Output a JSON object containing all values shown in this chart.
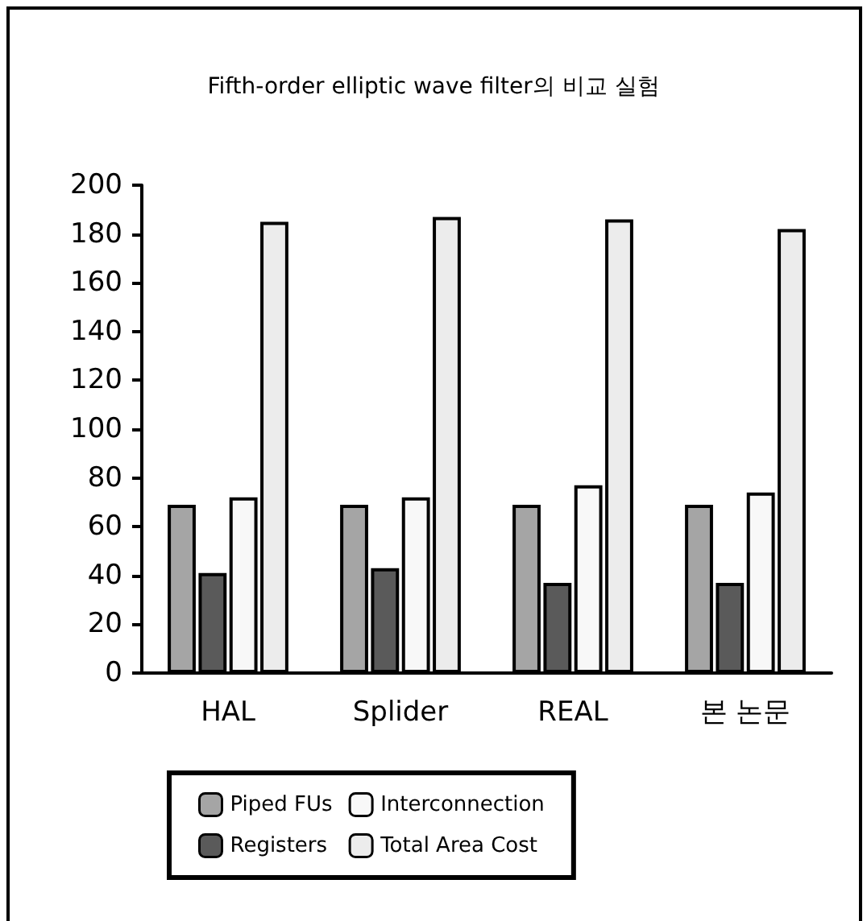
{
  "chart_data": {
    "type": "bar",
    "title": "Fifth-order elliptic wave filter의 비교 실험",
    "categories": [
      "HAL",
      "Splider",
      "REAL",
      "본 논문"
    ],
    "series": [
      {
        "name": "Piped FUs",
        "color": "#a5a5a5",
        "values": [
          69,
          69,
          69,
          69
        ]
      },
      {
        "name": "Registers",
        "color": "#5a5a5a",
        "values": [
          41,
          43,
          37,
          37
        ]
      },
      {
        "name": "Interconnection",
        "color": "#f8f8f8",
        "values": [
          72,
          72,
          77,
          74
        ]
      },
      {
        "name": "Total Area Cost",
        "color": "#ececec",
        "values": [
          185,
          187,
          186,
          182
        ]
      }
    ],
    "ylim": [
      0,
      200
    ],
    "yticks": [
      0,
      20,
      40,
      60,
      80,
      100,
      120,
      140,
      160,
      180,
      200
    ],
    "grid": false,
    "legend": "bottom"
  }
}
